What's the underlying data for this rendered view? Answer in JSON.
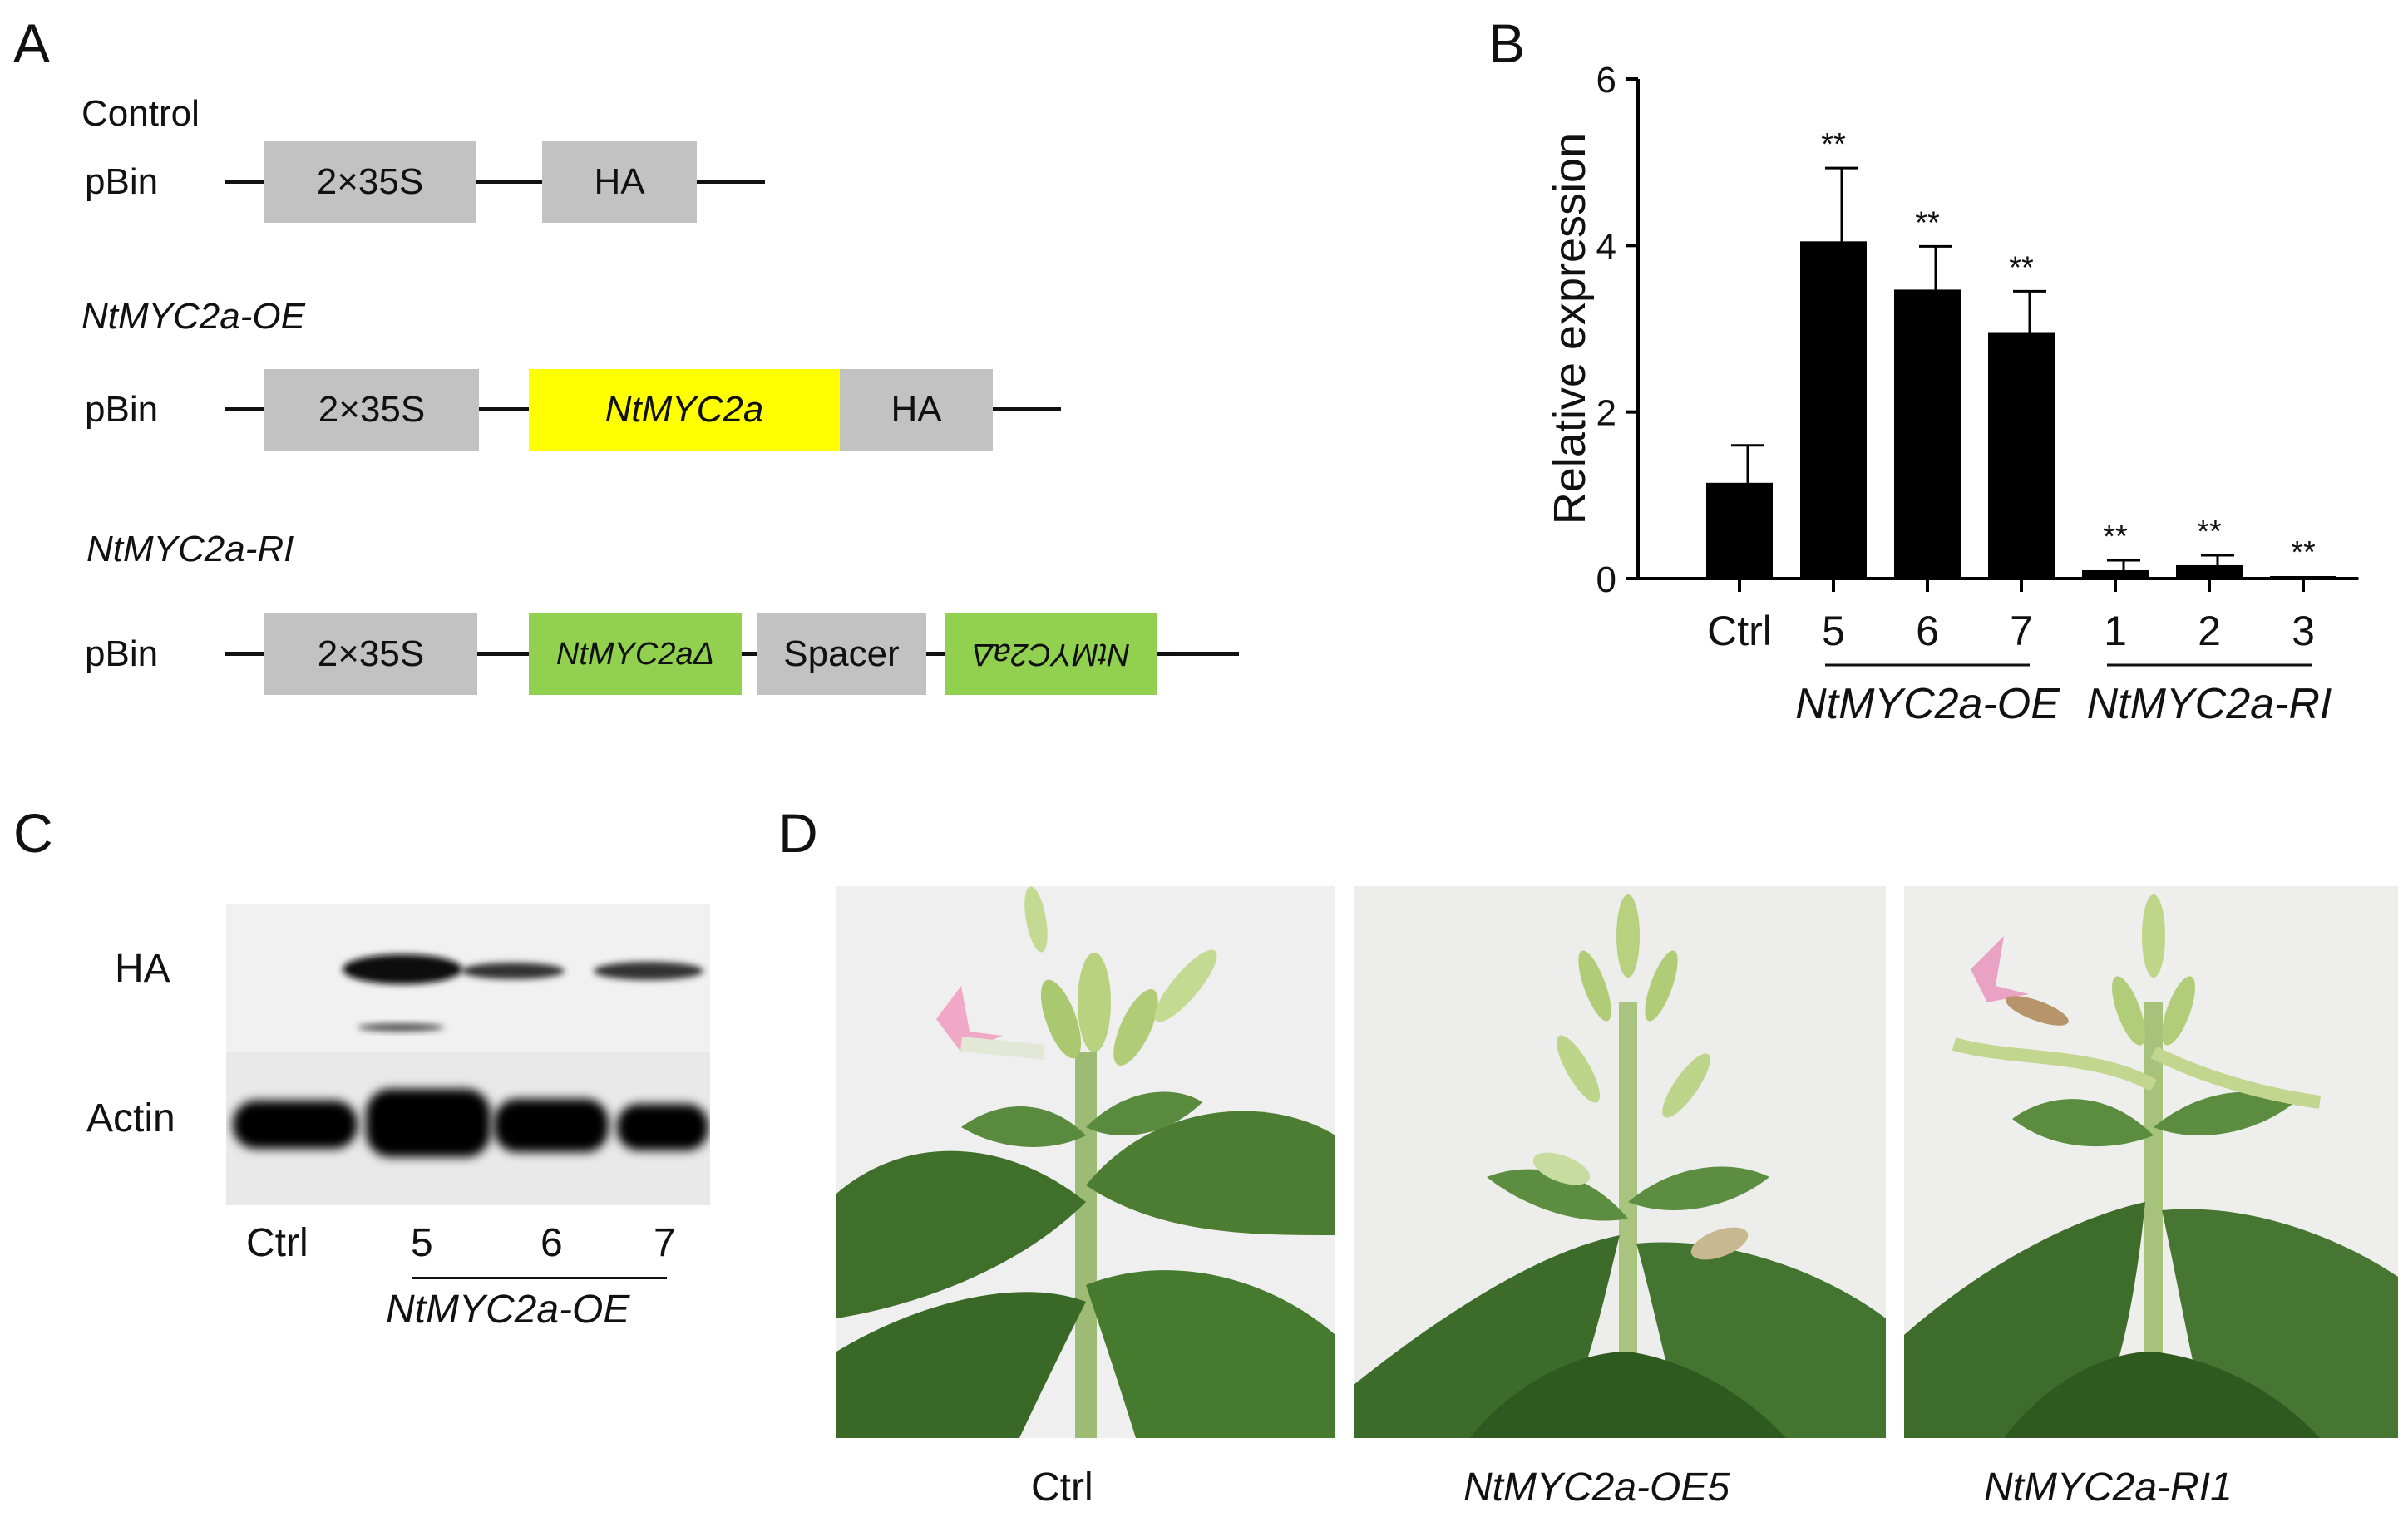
{
  "panels": {
    "a": "A",
    "b": "B",
    "c": "C",
    "d": "D"
  },
  "panel_a": {
    "constructs": [
      {
        "title": "Control",
        "vector": "pBin",
        "elements": [
          "2×35S",
          "HA"
        ]
      },
      {
        "title": "NtMYC2a-OE",
        "vector": "pBin",
        "elements": [
          "2×35S",
          "NtMYC2a",
          "HA"
        ]
      },
      {
        "title": "NtMYC2a-RI",
        "vector": "pBin",
        "elements": [
          "2×35S",
          "NtMYC2aΔ",
          "Spacer",
          "NtMYC2aΔ"
        ]
      }
    ],
    "colors": {
      "promoter": "#c2c2c2",
      "cds": "#ffff00",
      "rnai": "#92d050"
    }
  },
  "chart_data": {
    "type": "bar",
    "ylabel": "Relative expression",
    "ylim": [
      0,
      6
    ],
    "yticks": [
      "0",
      "2",
      "4",
      "6"
    ],
    "categories": [
      "Ctrl",
      "5",
      "6",
      "7",
      "1",
      "2",
      "3"
    ],
    "values": [
      1.15,
      4.05,
      3.47,
      2.95,
      0.1,
      0.16,
      0.03
    ],
    "errors": [
      0.45,
      0.88,
      0.52,
      0.5,
      0.12,
      0.12,
      0.0
    ],
    "significance": [
      "",
      "**",
      "**",
      "**",
      "**",
      "**",
      "**"
    ],
    "groups": [
      {
        "label": "NtMYC2a-OE",
        "categories": [
          "5",
          "6",
          "7"
        ]
      },
      {
        "label": "NtMYC2a-RI",
        "categories": [
          "1",
          "2",
          "3"
        ]
      }
    ],
    "bar_color": "#000000"
  },
  "panel_c": {
    "rows": [
      "HA",
      "Actin"
    ],
    "lanes": [
      "Ctrl",
      "5",
      "6",
      "7"
    ],
    "group_label": "NtMYC2a-OE"
  },
  "panel_d": {
    "captions": [
      "Ctrl",
      "NtMYC2a-OE5",
      "NtMYC2a-RI1"
    ]
  }
}
